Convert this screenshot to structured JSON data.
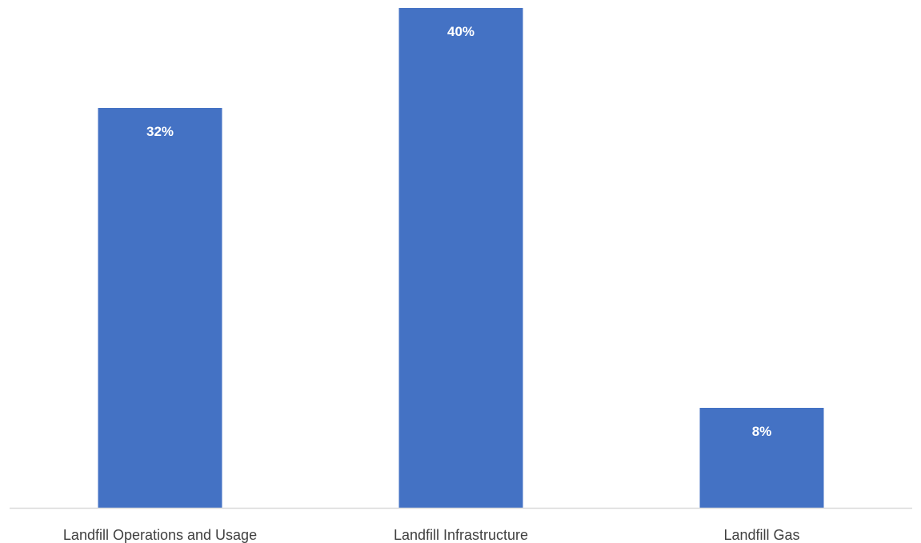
{
  "chart_data": {
    "type": "bar",
    "categories": [
      "Landfill Operations and Usage",
      "Landfill Infrastructure",
      "Landfill Gas"
    ],
    "values": [
      32,
      40,
      8
    ],
    "value_labels": [
      "32%",
      "40%",
      "8%"
    ],
    "ylim": [
      0,
      40
    ],
    "grid": false,
    "legend": "none",
    "colors": {
      "bar": "#4472c4",
      "axis": "#d9d9d9",
      "label_text": "#404040",
      "data_label_text": "#ffffff"
    }
  }
}
